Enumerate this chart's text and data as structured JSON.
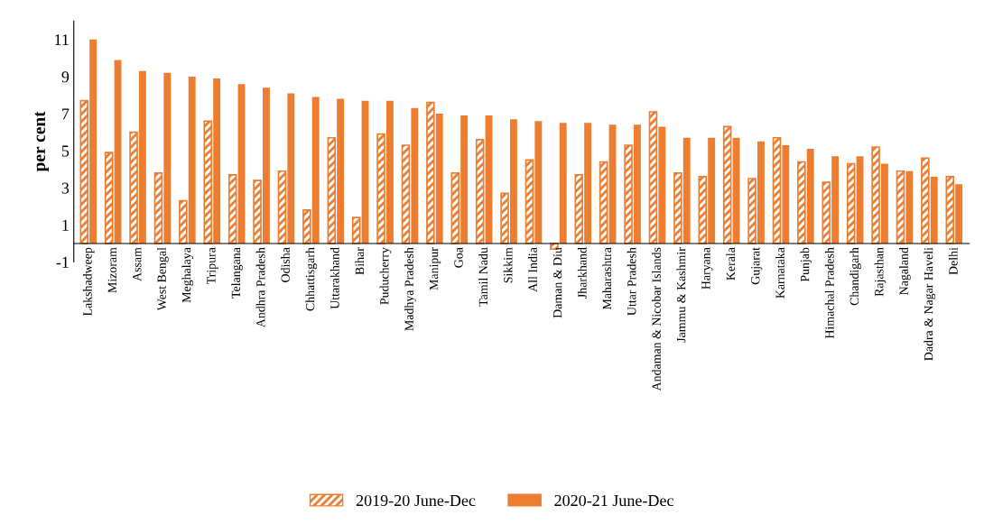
{
  "chart_data": {
    "type": "bar",
    "ylabel": "per cent",
    "categories": [
      "Lakshadweep",
      "Mizoram",
      "Assam",
      "West Bengal",
      "Meghalaya",
      "Tripura",
      "Telangana",
      "Andhra Pradesh",
      "Odisha",
      "Chhattisgarh",
      "Uttarakhand",
      "Bihar",
      "Puducherry",
      "Madhya Pradesh",
      "Manipur",
      "Goa",
      "Tamil Nadu",
      "Sikkim",
      "All India",
      "Daman & Diu",
      "Jharkhand",
      "Maharashtra",
      "Uttar Pradesh",
      "Andaman & Nicobar Islands",
      "Jammu & Kashmir",
      "Haryana",
      "Kerala",
      "Gujarat",
      "Karnataka",
      "Punjab",
      "Himachal Pradesh",
      "Chandigarh",
      "Rajasthan",
      "Nagaland",
      "Dadra & Nagar Haveli",
      "Delhi"
    ],
    "series": [
      {
        "name": "2019-20 June-Dec",
        "color": "#ed7d31",
        "values": [
          7.7,
          4.9,
          6.0,
          3.8,
          2.3,
          6.6,
          3.7,
          3.4,
          3.9,
          1.8,
          5.7,
          1.4,
          5.9,
          5.3,
          7.6,
          3.8,
          5.6,
          2.7,
          4.5,
          -0.3,
          3.7,
          4.4,
          5.3,
          7.1,
          3.8,
          3.6,
          6.3,
          3.5,
          5.7,
          4.4,
          3.3,
          4.3,
          5.2,
          3.9,
          4.6,
          3.6
        ]
      },
      {
        "name": "2020-21 June-Dec",
        "color": "#ed7d31",
        "values": [
          11.0,
          9.9,
          9.3,
          9.2,
          9.0,
          8.9,
          8.6,
          8.4,
          8.1,
          7.9,
          7.8,
          7.7,
          7.7,
          7.3,
          7.0,
          6.9,
          6.9,
          6.7,
          6.6,
          6.5,
          6.5,
          6.4,
          6.4,
          6.3,
          5.7,
          5.7,
          5.7,
          5.5,
          5.3,
          5.1,
          4.7,
          4.7,
          4.3,
          3.9,
          3.6,
          3.2
        ]
      }
    ],
    "ylim": [
      -1,
      12
    ],
    "yticks": [
      -1,
      1,
      3,
      5,
      7,
      9,
      11
    ],
    "grid": false,
    "legend": "bottom"
  }
}
